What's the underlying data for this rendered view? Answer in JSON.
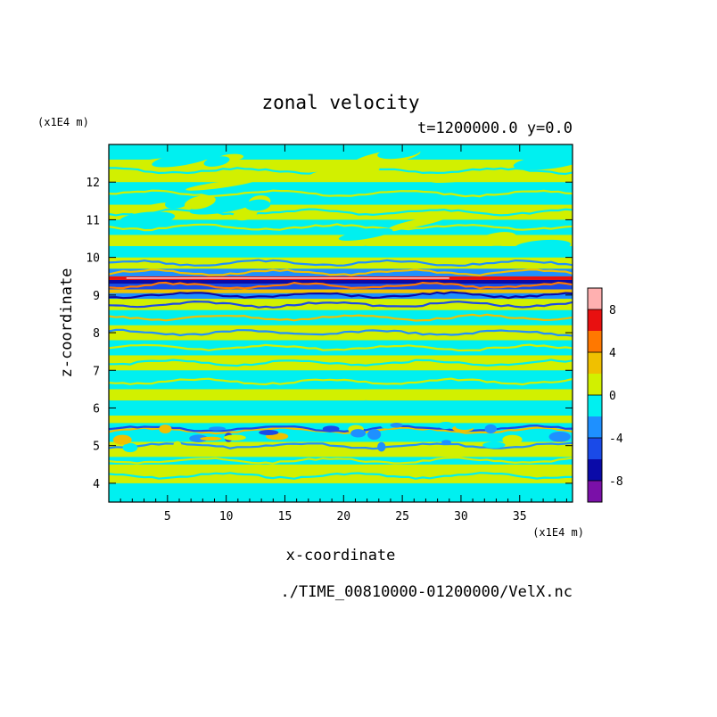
{
  "chart_data": {
    "type": "heatmap",
    "title": "zonal velocity",
    "subtitle": "t=1200000.0 y=0.0",
    "xlabel": "x-coordinate",
    "ylabel": "z-coordinate",
    "x_unit": "(x1E4 m)",
    "y_unit": "(x1E4 m)",
    "footer": "./TIME_00810000-01200000/VelX.nc",
    "xlim": [
      0,
      39.5
    ],
    "ylim": [
      3.5,
      13
    ],
    "x_ticks": [
      "5",
      "10",
      "15",
      "20",
      "25",
      "30",
      "35"
    ],
    "y_ticks": [
      "4",
      "5",
      "6",
      "7",
      "8",
      "9",
      "10",
      "11",
      "12"
    ],
    "colorbar": {
      "range": [
        -10,
        10
      ],
      "tick_labels": [
        "8",
        "4",
        "0",
        "-4",
        "-8"
      ],
      "levels": [
        {
          "from": -10,
          "to": -8,
          "color": "#7a10a8"
        },
        {
          "from": -8,
          "to": -6,
          "color": "#0a0aa8"
        },
        {
          "from": -6,
          "to": -4,
          "color": "#1a4ae8"
        },
        {
          "from": -4,
          "to": -2,
          "color": "#1e90ff"
        },
        {
          "from": -2,
          "to": 0,
          "color": "#00f0f0"
        },
        {
          "from": 0,
          "to": 2,
          "color": "#d2f000"
        },
        {
          "from": 2,
          "to": 4,
          "color": "#f0c000"
        },
        {
          "from": 4,
          "to": 6,
          "color": "#ff7800"
        },
        {
          "from": 6,
          "to": 8,
          "color": "#e81010"
        },
        {
          "from": 8,
          "to": 10,
          "color": "#ffb0b0"
        }
      ]
    },
    "bands": [
      {
        "z0": 3.5,
        "z1": 4.0,
        "level": 4
      },
      {
        "z0": 4.0,
        "z1": 4.5,
        "level": 5
      },
      {
        "z0": 4.5,
        "z1": 4.7,
        "level": 4
      },
      {
        "z0": 4.7,
        "z1": 5.1,
        "level": 5
      },
      {
        "z0": 5.1,
        "z1": 5.6,
        "level": 4
      },
      {
        "z0": 5.6,
        "z1": 5.8,
        "level": 5
      },
      {
        "z0": 5.8,
        "z1": 6.2,
        "level": 4
      },
      {
        "z0": 6.2,
        "z1": 6.5,
        "level": 5
      },
      {
        "z0": 6.5,
        "z1": 7.0,
        "level": 4
      },
      {
        "z0": 7.0,
        "z1": 7.4,
        "level": 5
      },
      {
        "z0": 7.4,
        "z1": 7.8,
        "level": 4
      },
      {
        "z0": 7.8,
        "z1": 8.2,
        "level": 5
      },
      {
        "z0": 8.2,
        "z1": 8.6,
        "level": 4
      },
      {
        "z0": 8.6,
        "z1": 8.9,
        "level": 5
      },
      {
        "z0": 8.9,
        "z1": 9.05,
        "level": 3
      },
      {
        "z0": 9.05,
        "z1": 9.15,
        "level": 6
      },
      {
        "z0": 9.15,
        "z1": 9.3,
        "level": 2
      },
      {
        "z0": 9.3,
        "z1": 9.4,
        "level": 1
      },
      {
        "z0": 9.4,
        "z1": 9.5,
        "level": 8
      },
      {
        "z0": 9.5,
        "z1": 9.7,
        "level": 3
      },
      {
        "z0": 9.7,
        "z1": 10.0,
        "level": 5
      },
      {
        "z0": 10.0,
        "z1": 10.3,
        "level": 4
      },
      {
        "z0": 10.3,
        "z1": 10.6,
        "level": 5
      },
      {
        "z0": 10.6,
        "z1": 11.0,
        "level": 4
      },
      {
        "z0": 11.0,
        "z1": 11.4,
        "level": 5
      },
      {
        "z0": 11.4,
        "z1": 12.0,
        "level": 4
      },
      {
        "z0": 12.0,
        "z1": 12.6,
        "level": 5
      },
      {
        "z0": 12.6,
        "z1": 13.0,
        "level": 4
      }
    ],
    "streaks": [
      {
        "z": 4.2,
        "level": 4
      },
      {
        "z": 4.6,
        "level": 5
      },
      {
        "z": 5.0,
        "level": 3
      },
      {
        "z": 5.4,
        "level": 6
      },
      {
        "z": 5.45,
        "level": 2
      },
      {
        "z": 6.1,
        "level": 4
      },
      {
        "z": 6.7,
        "level": 5
      },
      {
        "z": 7.2,
        "level": 4
      },
      {
        "z": 7.6,
        "level": 5
      },
      {
        "z": 8.0,
        "level": 3
      },
      {
        "z": 8.4,
        "level": 6
      },
      {
        "z": 8.75,
        "level": 2
      },
      {
        "z": 9.0,
        "level": 1
      },
      {
        "z": 9.25,
        "level": 7
      },
      {
        "z": 9.6,
        "level": 6
      },
      {
        "z": 9.85,
        "level": 3
      },
      {
        "z": 10.2,
        "level": 4
      },
      {
        "z": 10.8,
        "level": 5
      },
      {
        "z": 11.2,
        "level": 4
      },
      {
        "z": 11.7,
        "level": 5
      },
      {
        "z": 12.3,
        "level": 4
      }
    ]
  }
}
